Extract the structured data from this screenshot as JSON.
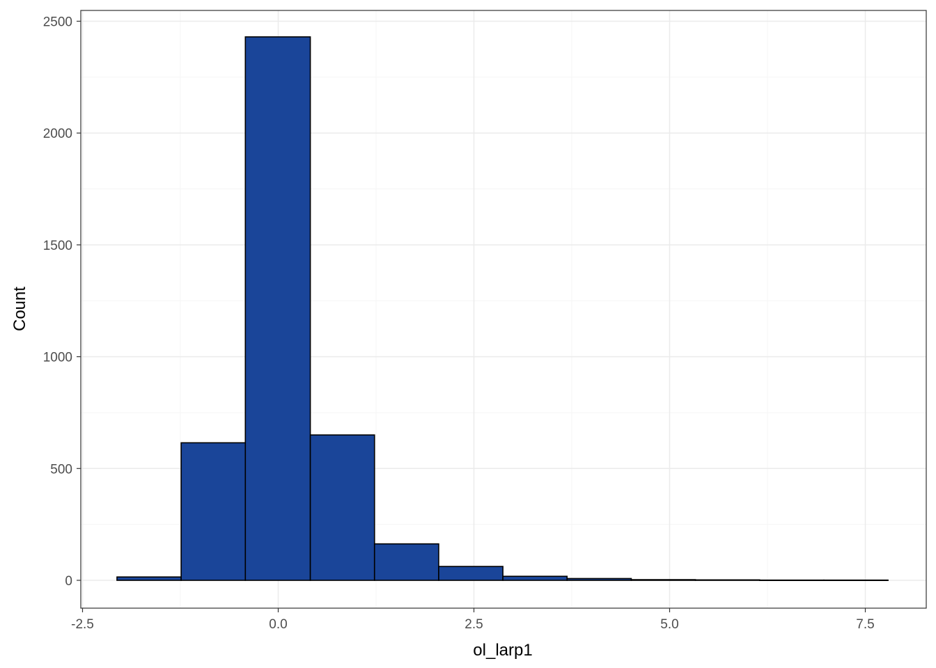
{
  "chart_data": {
    "type": "bar",
    "subtype": "histogram",
    "title": "",
    "xlabel": "ol_larp1",
    "ylabel": "Count",
    "xlim": [
      -2.5,
      7.8
    ],
    "ylim": [
      0,
      2500
    ],
    "x_ticks": [
      "-2.5",
      "0.0",
      "2.5",
      "5.0",
      "7.5"
    ],
    "x_tick_values": [
      -2.5,
      0.0,
      2.5,
      5.0,
      7.5
    ],
    "y_ticks": [
      "0",
      "500",
      "1000",
      "1500",
      "2000",
      "2500"
    ],
    "y_tick_values": [
      0,
      500,
      1000,
      1500,
      2000,
      2500
    ],
    "grid": true,
    "legend": "none",
    "bins": [
      {
        "x0": -2.06,
        "x1": -1.24,
        "count": 15
      },
      {
        "x0": -1.24,
        "x1": -0.42,
        "count": 615
      },
      {
        "x0": -0.42,
        "x1": 0.41,
        "count": 2430
      },
      {
        "x0": 0.41,
        "x1": 1.23,
        "count": 650
      },
      {
        "x0": 1.23,
        "x1": 2.05,
        "count": 163
      },
      {
        "x0": 2.05,
        "x1": 2.87,
        "count": 62
      },
      {
        "x0": 2.87,
        "x1": 3.69,
        "count": 18
      },
      {
        "x0": 3.69,
        "x1": 4.51,
        "count": 8
      },
      {
        "x0": 4.51,
        "x1": 5.33,
        "count": 3
      },
      {
        "x0": 5.33,
        "x1": 6.15,
        "count": 2
      },
      {
        "x0": 6.15,
        "x1": 6.97,
        "count": 1
      },
      {
        "x0": 6.97,
        "x1": 7.79,
        "count": 1
      }
    ],
    "colors": {
      "bar_fill": "#1a4599",
      "bar_stroke": "#000000",
      "panel_border": "#333333",
      "grid_major": "#ebebeb",
      "grid_minor": "#f5f5f5",
      "tick_text": "#4d4d4d"
    }
  }
}
